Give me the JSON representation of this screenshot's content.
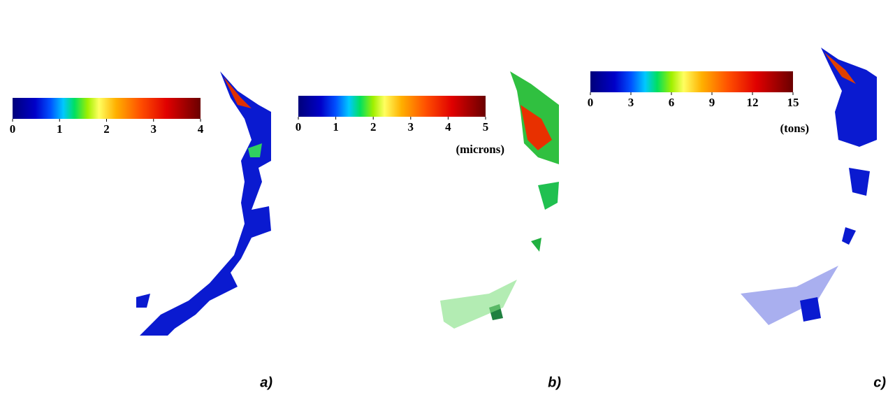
{
  "panels": [
    {
      "lim": [
        0,
        4
      ],
      "ticks": [
        0,
        1,
        2,
        3,
        4
      ],
      "label": "a)"
    },
    {
      "lim": [
        0,
        5
      ],
      "ticks": [
        0,
        1,
        2,
        3,
        4,
        5
      ],
      "unit": "(microns)",
      "label": "b)"
    },
    {
      "lim": [
        0,
        15
      ],
      "ticks": [
        0,
        3,
        6,
        9,
        12,
        15
      ],
      "unit": "(tons)",
      "label": "c)"
    }
  ]
}
